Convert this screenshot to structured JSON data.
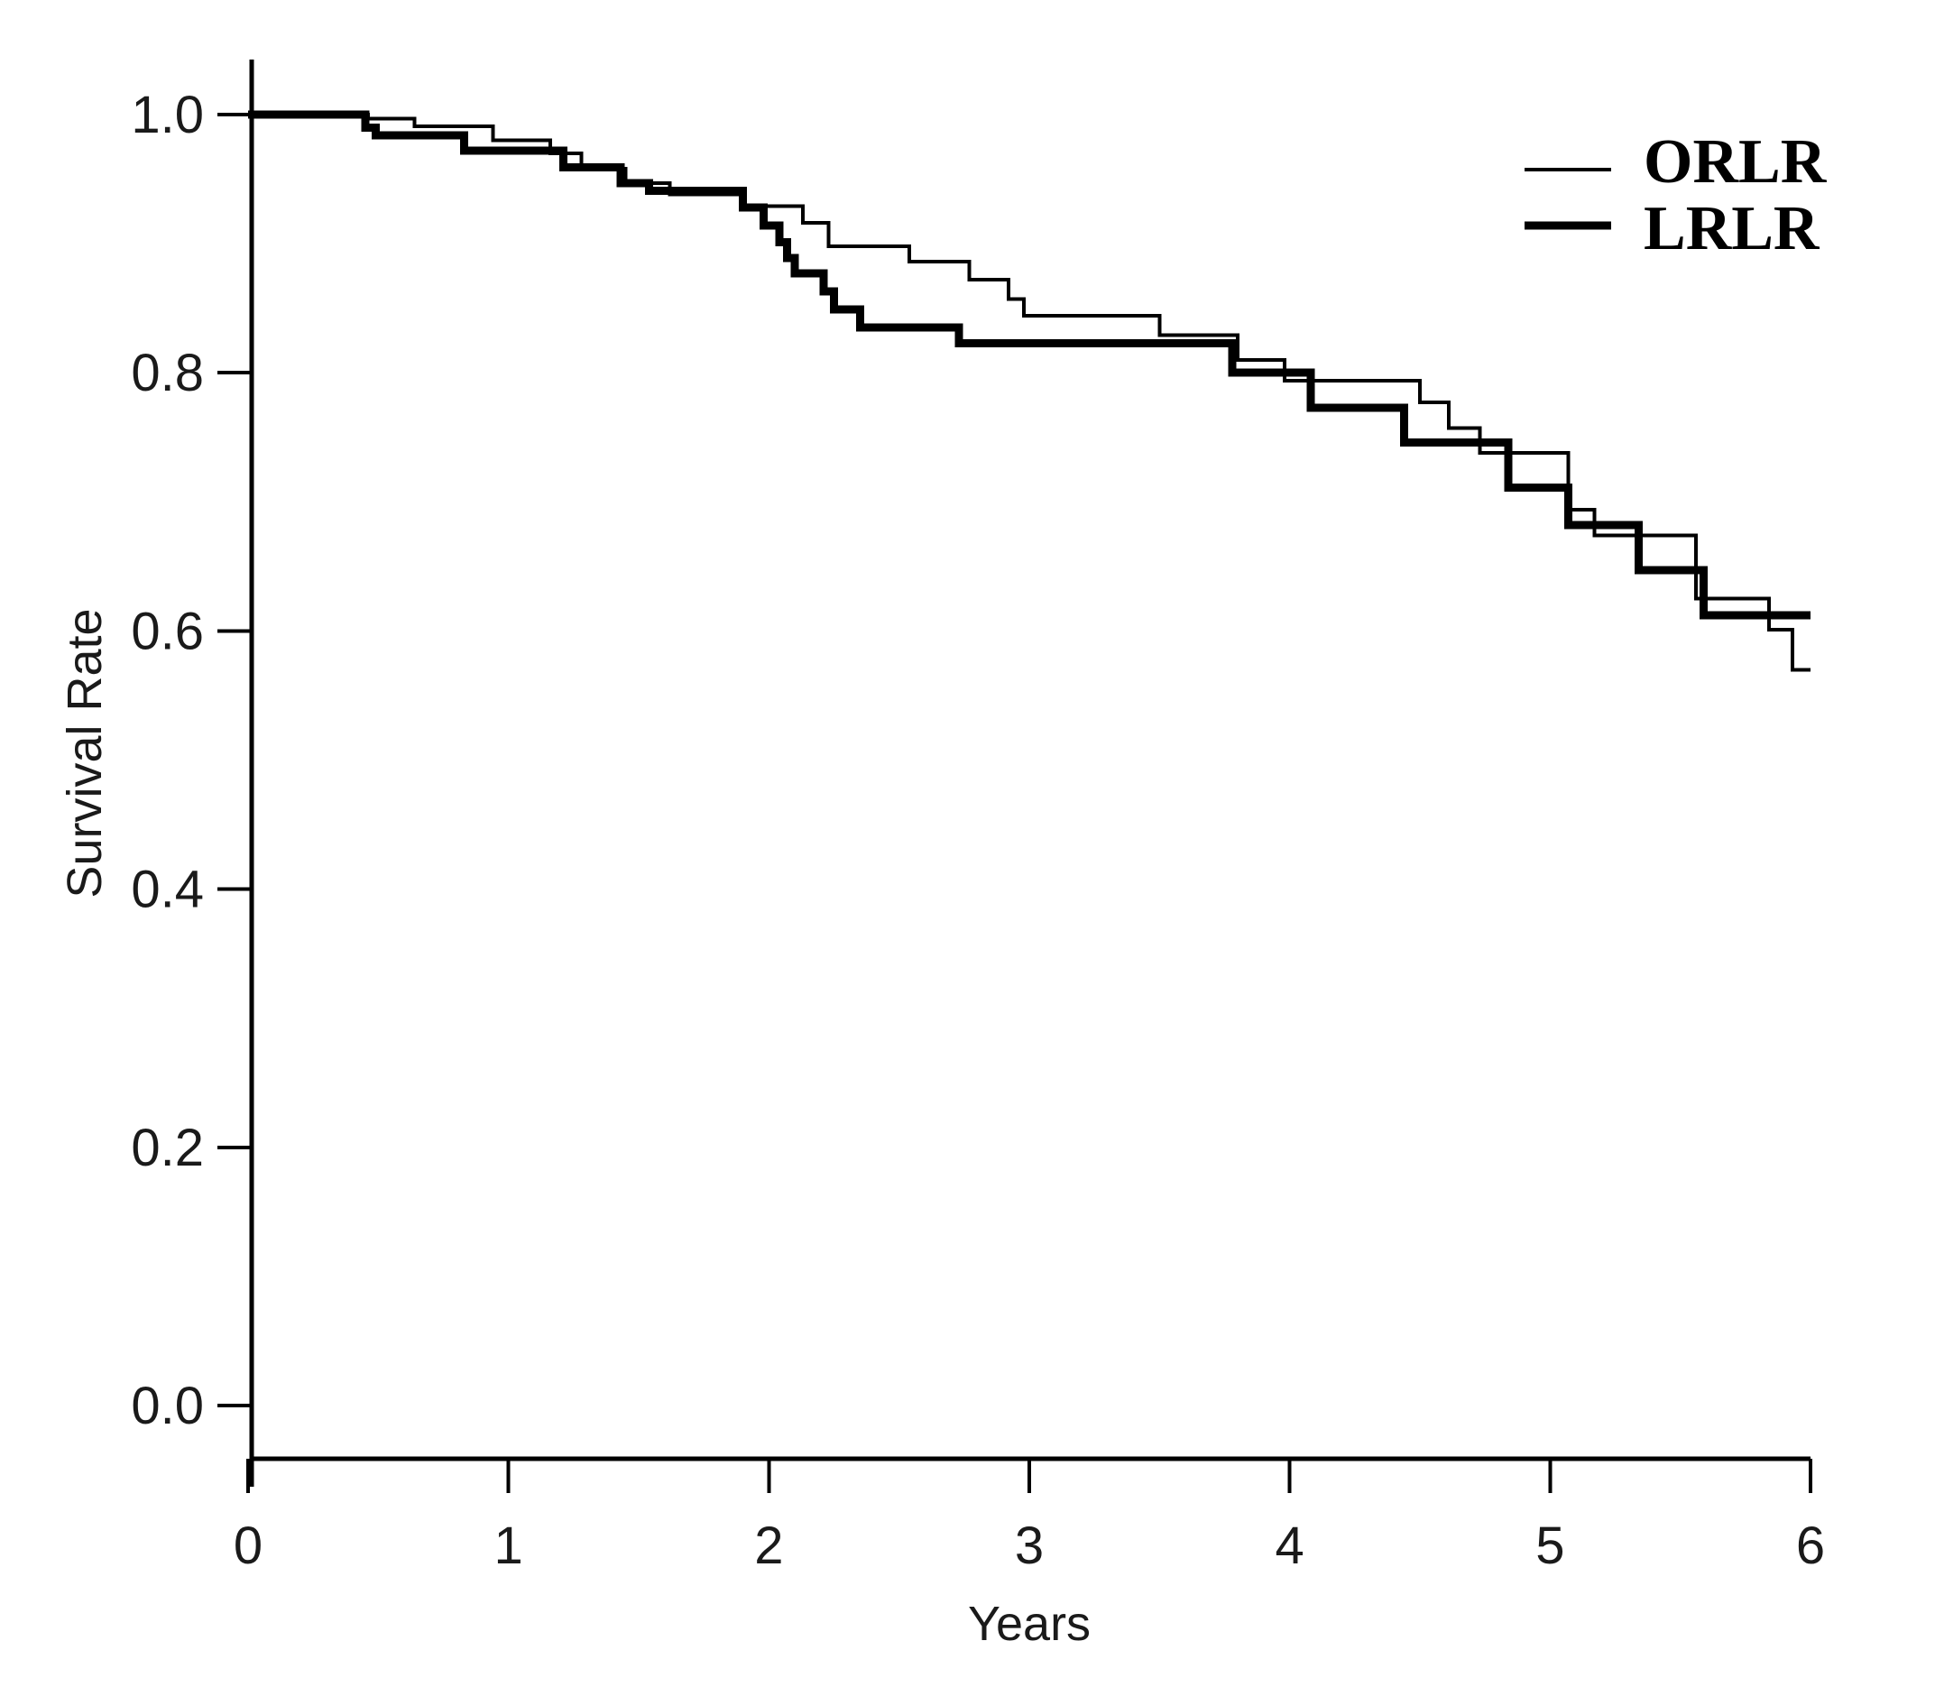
{
  "figure": {
    "background_color": "#ffffff",
    "line_color": "#000000",
    "text_color": "#1a1a1a"
  },
  "chart_data": {
    "type": "line",
    "subtype": "kaplan-meier-step-curve",
    "title": "",
    "xlabel": "Years",
    "ylabel": "Survival Rate",
    "xlim": [
      0,
      6
    ],
    "ylim": [
      0.0,
      1.0
    ],
    "grid": false,
    "legend_position": "top-right",
    "x_ticks": [
      {
        "value": 0,
        "label": "0"
      },
      {
        "value": 1,
        "label": "1"
      },
      {
        "value": 2,
        "label": "2"
      },
      {
        "value": 3,
        "label": "3"
      },
      {
        "value": 4,
        "label": "4"
      },
      {
        "value": 5,
        "label": "5"
      },
      {
        "value": 6,
        "label": "6"
      }
    ],
    "y_ticks": [
      {
        "value": 1.0,
        "label": "1.0"
      },
      {
        "value": 0.8,
        "label": "0.8"
      },
      {
        "value": 0.6,
        "label": "0.6"
      },
      {
        "value": 0.4,
        "label": "0.4"
      },
      {
        "value": 0.2,
        "label": "0.2"
      },
      {
        "value": 0.0,
        "label": "0.0"
      }
    ],
    "series": [
      {
        "name": "ORLR",
        "line_style": "thin",
        "stroke_width": 4,
        "color": "#000000",
        "end_x": 6.0,
        "points": [
          [
            0.0,
            1.0
          ],
          [
            0.46,
            0.997
          ],
          [
            0.64,
            0.991
          ],
          [
            0.94,
            0.98
          ],
          [
            1.16,
            0.97
          ],
          [
            1.28,
            0.958
          ],
          [
            1.45,
            0.947
          ],
          [
            1.62,
            0.938
          ],
          [
            1.9,
            0.929
          ],
          [
            2.13,
            0.916
          ],
          [
            2.23,
            0.898
          ],
          [
            2.54,
            0.886
          ],
          [
            2.77,
            0.872
          ],
          [
            2.92,
            0.857
          ],
          [
            2.98,
            0.844
          ],
          [
            3.5,
            0.829
          ],
          [
            3.8,
            0.81
          ],
          [
            3.98,
            0.794
          ],
          [
            4.5,
            0.777
          ],
          [
            4.61,
            0.757
          ],
          [
            4.73,
            0.738
          ],
          [
            5.07,
            0.694
          ],
          [
            5.17,
            0.674
          ],
          [
            5.56,
            0.625
          ],
          [
            5.84,
            0.601
          ],
          [
            5.93,
            0.57
          ]
        ]
      },
      {
        "name": "LRLR",
        "line_style": "thick",
        "stroke_width": 9,
        "color": "#000000",
        "end_x": 6.0,
        "points": [
          [
            0.0,
            1.0
          ],
          [
            0.45,
            0.99
          ],
          [
            0.49,
            0.984
          ],
          [
            0.83,
            0.972
          ],
          [
            1.21,
            0.959
          ],
          [
            1.43,
            0.947
          ],
          [
            1.54,
            0.941
          ],
          [
            1.9,
            0.928
          ],
          [
            1.98,
            0.914
          ],
          [
            2.04,
            0.901
          ],
          [
            2.07,
            0.889
          ],
          [
            2.1,
            0.877
          ],
          [
            2.21,
            0.863
          ],
          [
            2.25,
            0.849
          ],
          [
            2.35,
            0.835
          ],
          [
            2.73,
            0.823
          ],
          [
            3.78,
            0.8
          ],
          [
            4.08,
            0.773
          ],
          [
            4.44,
            0.746
          ],
          [
            4.84,
            0.711
          ],
          [
            5.07,
            0.682
          ],
          [
            5.34,
            0.647
          ],
          [
            5.59,
            0.612
          ]
        ]
      }
    ]
  }
}
